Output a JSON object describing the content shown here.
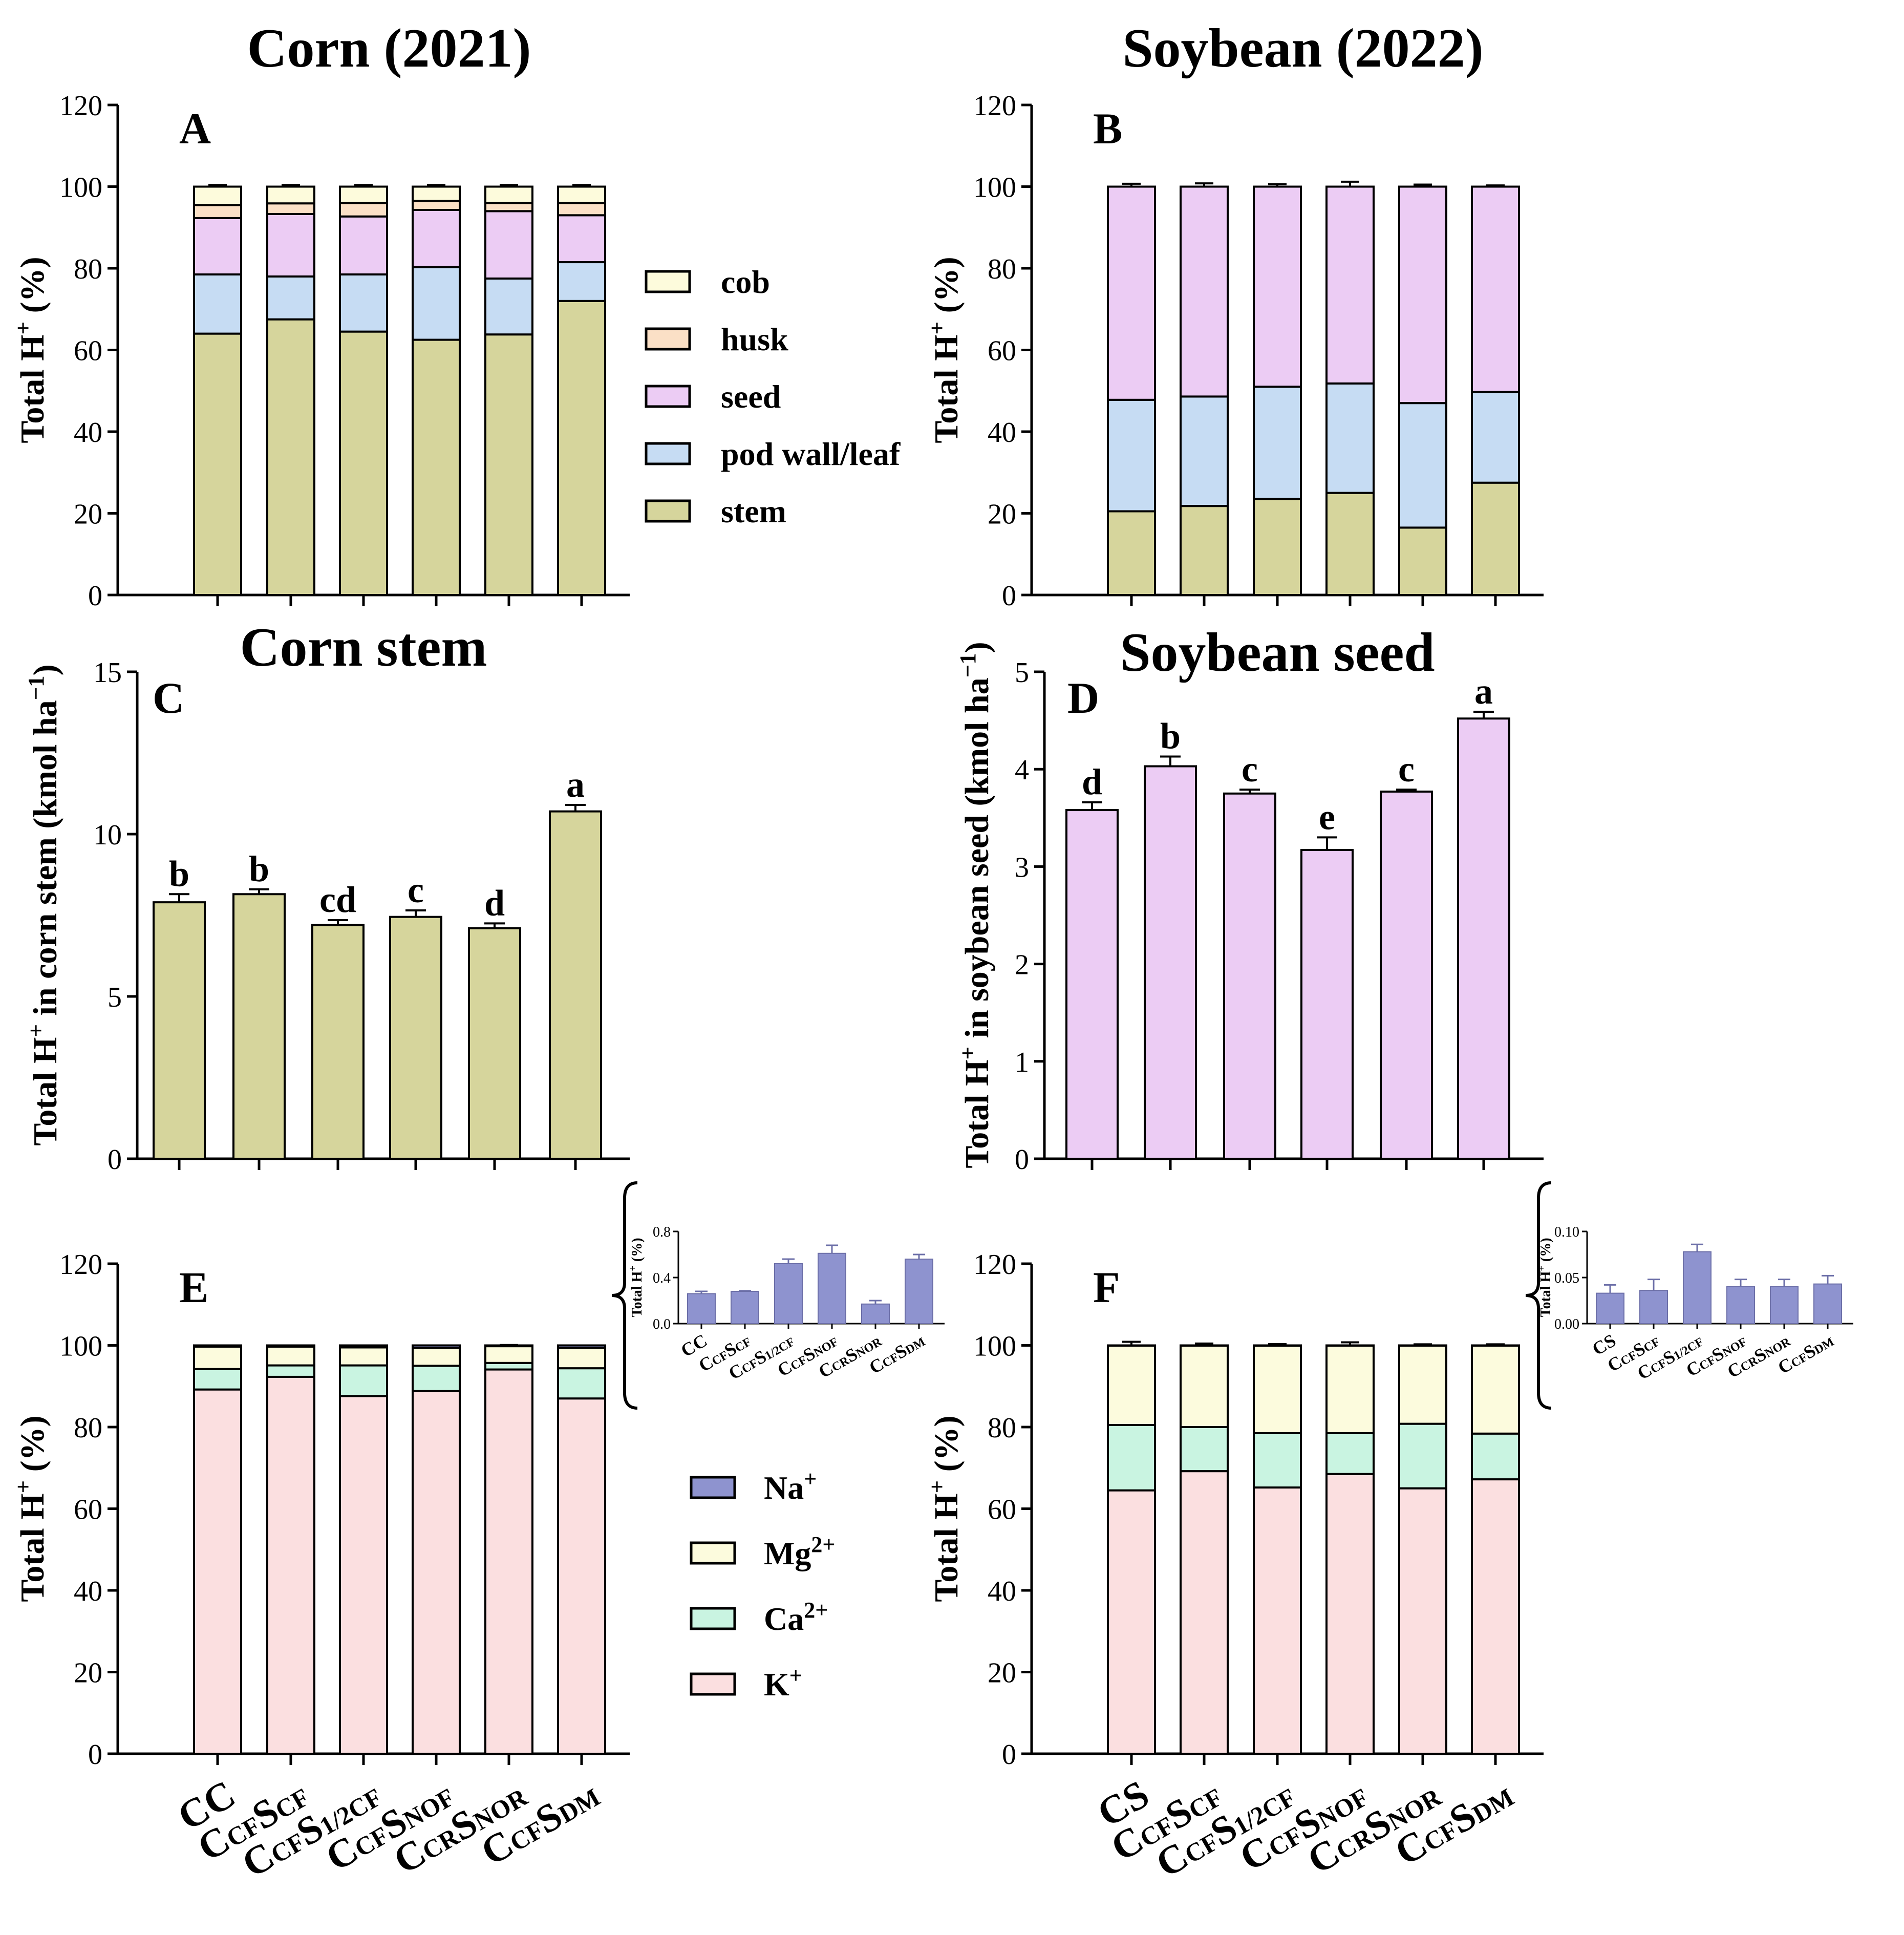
{
  "colors": {
    "stem": "#d6d59c",
    "podwall": "#c6dcf3",
    "seed": "#ecccf4",
    "husk": "#fbe0c6",
    "cob": "#fdfbdc",
    "K": "#fbdfe0",
    "Ca": "#c9f4e1",
    "Mg": "#fcfbdd",
    "Na": "#8e93cf"
  },
  "chart_data": [
    {
      "id": "A",
      "type": "stacked-bar",
      "panel_label": "A",
      "title": "Corn (2021)",
      "ylabel_main": "Total H",
      "ylabel_sup": "+",
      "ylabel_tail": " (%)",
      "ylim": [
        0,
        120
      ],
      "yticks": [
        0,
        20,
        40,
        60,
        80,
        100,
        120
      ],
      "categories": [
        "CC",
        "CCFSCF",
        "CCFS1/2CF",
        "CCFSNOF",
        "CCRSNOR",
        "CCFSDM"
      ],
      "series": [
        {
          "name": "stem",
          "color_key": "stem",
          "values": [
            64,
            67.5,
            64.5,
            62.5,
            63.8,
            72
          ],
          "err": [
            1.0,
            1.2,
            1.0,
            0.9,
            1.1,
            1.0
          ]
        },
        {
          "name": "pod wall/leaf",
          "color_key": "podwall",
          "values": [
            14.5,
            10.5,
            14,
            17.8,
            13.7,
            9.5
          ],
          "err": [
            0.8,
            1.2,
            1.0,
            0.8,
            1.2,
            1.0
          ]
        },
        {
          "name": "seed",
          "color_key": "seed",
          "values": [
            13.8,
            15.3,
            14.2,
            14,
            16.5,
            11.5
          ],
          "err": [
            0.6,
            0.6,
            0.6,
            0.6,
            0.6,
            0.6
          ]
        },
        {
          "name": "husk",
          "color_key": "husk",
          "values": [
            3.2,
            2.6,
            3.3,
            2.2,
            2.0,
            3.0
          ],
          "err": [
            0.6,
            0.6,
            0.6,
            0.6,
            0.6,
            0.6
          ]
        },
        {
          "name": "cob",
          "color_key": "cob",
          "values": [
            4.5,
            4.1,
            4.0,
            3.5,
            4.0,
            4.0
          ],
          "err": [
            0.4,
            0.4,
            0.4,
            0.4,
            0.4,
            0.4
          ]
        }
      ]
    },
    {
      "id": "B",
      "type": "stacked-bar",
      "panel_label": "B",
      "title": "Soybean (2022)",
      "ylabel_main": "Total H",
      "ylabel_sup": "+",
      "ylabel_tail": " (%)",
      "ylim": [
        0,
        120
      ],
      "yticks": [
        0,
        20,
        40,
        60,
        80,
        100,
        120
      ],
      "categories": [
        "CS",
        "CCFSCF",
        "CCFS1/2CF",
        "CCFSNOF",
        "CCRSNOR",
        "CCFSDM"
      ],
      "series": [
        {
          "name": "stem",
          "color_key": "stem",
          "values": [
            20.5,
            21.8,
            23.5,
            25,
            16.5,
            27.5
          ],
          "err": [
            0.7,
            0.7,
            0.7,
            0.5,
            0.3,
            0.4
          ]
        },
        {
          "name": "pod wall/leaf",
          "color_key": "podwall",
          "values": [
            27.3,
            26.8,
            27.5,
            26.8,
            30.5,
            22.2
          ],
          "err": [
            1.2,
            0.9,
            0.9,
            1.2,
            0.5,
            0.4
          ]
        },
        {
          "name": "seed",
          "color_key": "seed",
          "values": [
            52.2,
            51.4,
            49,
            48.2,
            53,
            50.3
          ],
          "err": [
            0.7,
            0.8,
            0.6,
            1.2,
            0.5,
            0.3
          ]
        }
      ]
    },
    {
      "id": "C",
      "type": "bar",
      "panel_label": "C",
      "title": "Corn stem",
      "ylabel_main": "Total H",
      "ylabel_sup": "+",
      "ylabel_tail": " in corn stem (kmol ha",
      "ylabel_sup2": "−1",
      "ylabel_end": ")",
      "ylim": [
        0,
        15
      ],
      "yticks": [
        0,
        5,
        10,
        15
      ],
      "categories": [
        "CC",
        "CCFSCF",
        "CCFS1/2CF",
        "CCFSNOF",
        "CCRSNOR",
        "CCFSDM"
      ],
      "values": [
        7.9,
        8.15,
        7.2,
        7.45,
        7.1,
        10.7
      ],
      "err": [
        0.25,
        0.15,
        0.15,
        0.2,
        0.15,
        0.2
      ],
      "letters": [
        "b",
        "b",
        "cd",
        "c",
        "d",
        "a"
      ],
      "color_key": "stem"
    },
    {
      "id": "D",
      "type": "bar",
      "panel_label": "D",
      "title": "Soybean seed",
      "ylabel_main": "Total H",
      "ylabel_sup": "+",
      "ylabel_tail": " in soybean seed (kmol ha",
      "ylabel_sup2": "−1",
      "ylabel_end": ")",
      "ylim": [
        0,
        5
      ],
      "yticks": [
        0,
        1,
        2,
        3,
        4,
        5
      ],
      "categories": [
        "CS",
        "CCFSCF",
        "CCFS1/2CF",
        "CCFSNOF",
        "CCRSNOR",
        "CCFSDM"
      ],
      "values": [
        3.58,
        4.03,
        3.75,
        3.17,
        3.77,
        4.52
      ],
      "err": [
        0.08,
        0.1,
        0.04,
        0.13,
        0.02,
        0.07
      ],
      "letters": [
        "d",
        "b",
        "c",
        "e",
        "c",
        "a"
      ],
      "color_key": "seed"
    },
    {
      "id": "E",
      "type": "stacked-bar",
      "panel_label": "E",
      "ylabel_main": "Total H",
      "ylabel_sup": "+",
      "ylabel_tail": " (%)",
      "ylim": [
        0,
        120
      ],
      "yticks": [
        0,
        20,
        40,
        60,
        80,
        100,
        120
      ],
      "categories": [
        "CC",
        "CCFSCF",
        "CCFS1/2CF",
        "CCFSNOF",
        "CCRSNOR",
        "CCFSDM"
      ],
      "xtick_labels": [
        {
          "main": "CC"
        },
        {
          "main": "C",
          "sub1": "CF",
          "main2": "S",
          "sub2": "CF"
        },
        {
          "main": "C",
          "sub1": "CF",
          "main2": "S",
          "sub2": "1/2CF"
        },
        {
          "main": "C",
          "sub1": "CF",
          "main2": "S",
          "sub2": "NOF"
        },
        {
          "main": "C",
          "sub1": "CR",
          "main2": "S",
          "sub2": "NOR"
        },
        {
          "main": "C",
          "sub1": "CF",
          "main2": "S",
          "sub2": "DM"
        }
      ],
      "series": [
        {
          "name": "K+",
          "color_key": "K",
          "values": [
            89.2,
            92.3,
            87.6,
            88.8,
            94.1,
            87.0
          ],
          "err": [
            0.9,
            0.8,
            0.7,
            0.8,
            0.5,
            0.5
          ]
        },
        {
          "name": "Ca2+",
          "color_key": "Ca",
          "values": [
            5.0,
            2.8,
            7.5,
            6.2,
            1.6,
            7.4
          ],
          "err": [
            0.6,
            0.4,
            0.5,
            0.5,
            0.4,
            0.3
          ]
        },
        {
          "name": "Mg2+",
          "color_key": "Mg",
          "values": [
            5.5,
            4.6,
            4.4,
            4.4,
            4.1,
            5.0
          ],
          "err": [
            0.3,
            0.3,
            0.3,
            0.3,
            0.3,
            0.3
          ]
        },
        {
          "name": "Na+",
          "color_key": "Na",
          "values": [
            0.3,
            0.3,
            0.5,
            0.6,
            0.2,
            0.6
          ],
          "err": [
            0,
            0,
            0,
            0,
            0,
            0
          ]
        }
      ]
    },
    {
      "id": "F",
      "type": "stacked-bar",
      "panel_label": "F",
      "ylabel_main": "Total H",
      "ylabel_sup": "+",
      "ylabel_tail": " (%)",
      "ylim": [
        0,
        120
      ],
      "yticks": [
        0,
        20,
        40,
        60,
        80,
        100,
        120
      ],
      "categories": [
        "CS",
        "CCFSCF",
        "CCFS1/2CF",
        "CCFSNOF",
        "CCRSNOR",
        "CCFSDM"
      ],
      "xtick_labels": [
        {
          "main": "CS"
        },
        {
          "main": "C",
          "sub1": "CF",
          "main2": "S",
          "sub2": "CF"
        },
        {
          "main": "C",
          "sub1": "CF",
          "main2": "S",
          "sub2": "1/2CF"
        },
        {
          "main": "C",
          "sub1": "CF",
          "main2": "S",
          "sub2": "NOF"
        },
        {
          "main": "C",
          "sub1": "CR",
          "main2": "S",
          "sub2": "NOR"
        },
        {
          "main": "C",
          "sub1": "CF",
          "main2": "S",
          "sub2": "DM"
        }
      ],
      "series": [
        {
          "name": "K+",
          "color_key": "K",
          "values": [
            64.5,
            69.2,
            65.2,
            68.5,
            65,
            67.2
          ],
          "err": [
            1.0,
            0.8,
            0.6,
            0.7,
            1.0,
            0.6
          ]
        },
        {
          "name": "Ca2+",
          "color_key": "Ca",
          "values": [
            16,
            10.8,
            13.3,
            10,
            15.8,
            11.2
          ],
          "err": [
            0.8,
            0.5,
            0.5,
            0.7,
            1.0,
            0.4
          ]
        },
        {
          "name": "Mg2+",
          "color_key": "Mg",
          "values": [
            19.47,
            19.96,
            21.42,
            21.46,
            19.16,
            21.56
          ],
          "err": [
            0.9,
            0.5,
            0.4,
            0.8,
            0.3,
            0.3
          ]
        },
        {
          "name": "Na+",
          "color_key": "Na",
          "values": [
            0.03,
            0.04,
            0.08,
            0.04,
            0.04,
            0.04
          ],
          "err": [
            0,
            0,
            0,
            0,
            0,
            0
          ]
        }
      ]
    },
    {
      "id": "E-inset",
      "type": "bar",
      "inset_of": "E",
      "ylabel": "Total H+ (%)",
      "ylabel_main": "Total H",
      "ylabel_sup": "+",
      "ylabel_tail": " (%)",
      "ylim": [
        0,
        0.8
      ],
      "yticks": [
        0.0,
        0.4,
        0.8
      ],
      "ytick_labels": [
        "0.0",
        "0.4",
        "0.8"
      ],
      "categories": [
        "CC",
        "CCFSCF",
        "CCFS1/2CF",
        "CCFSNOF",
        "CCRSNOR",
        "CCFSDM"
      ],
      "values": [
        0.26,
        0.28,
        0.52,
        0.61,
        0.17,
        0.56
      ],
      "err": [
        0.02,
        0.005,
        0.04,
        0.07,
        0.03,
        0.04
      ],
      "color_key": "Na"
    },
    {
      "id": "F-inset",
      "type": "bar",
      "inset_of": "F",
      "ylabel": "Total H+ (%)",
      "ylabel_main": "Total H",
      "ylabel_sup": "+",
      "ylabel_tail": " (%)",
      "ylim": [
        0,
        0.1
      ],
      "yticks": [
        0.0,
        0.05,
        0.1
      ],
      "ytick_labels": [
        "0.00",
        "0.05",
        "0.10"
      ],
      "categories": [
        "CS",
        "CCFSCF",
        "CCFS1/2CF",
        "CCFSNOF",
        "CCRSNOR",
        "CCFSDM"
      ],
      "values": [
        0.033,
        0.036,
        0.078,
        0.04,
        0.04,
        0.043
      ],
      "err": [
        0.009,
        0.012,
        0.008,
        0.008,
        0.008,
        0.009
      ],
      "color_key": "Na"
    }
  ],
  "legends": {
    "organs": [
      {
        "label": "cob",
        "color_key": "cob"
      },
      {
        "label": "husk",
        "color_key": "husk"
      },
      {
        "label": "seed",
        "color_key": "seed"
      },
      {
        "label": "pod wall/leaf",
        "color_key": "podwall"
      },
      {
        "label": "stem",
        "color_key": "stem"
      }
    ],
    "cations": [
      {
        "label": "Na",
        "sup": "+",
        "color_key": "Na"
      },
      {
        "label": "Mg",
        "sup": "2+",
        "color_key": "Mg"
      },
      {
        "label": "Ca",
        "sup": "2+",
        "color_key": "Ca"
      },
      {
        "label": "K",
        "sup": "+",
        "color_key": "K"
      }
    ]
  }
}
